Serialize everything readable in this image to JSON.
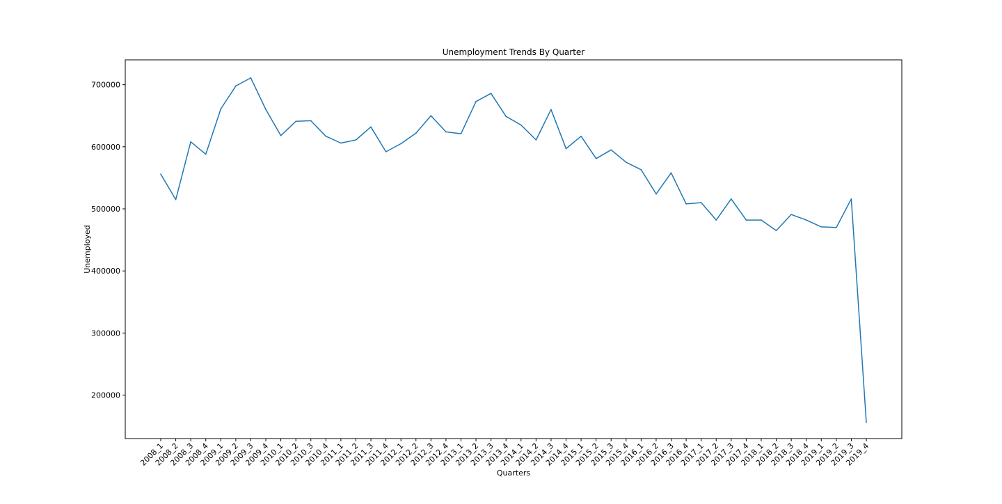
{
  "chart_data": {
    "type": "line",
    "title": "Unemployment Trends By Quarter",
    "xlabel": "Quarters",
    "ylabel": "Unemployed",
    "ylim": [
      130000,
      740000
    ],
    "yticks": [
      200000,
      300000,
      400000,
      500000,
      600000,
      700000
    ],
    "grid": false,
    "line_color": "#1f77b4",
    "categories": [
      "2008_1",
      "2008_2",
      "2008_3",
      "2008_4",
      "2009_1",
      "2009_2",
      "2009_3",
      "2009_4",
      "2010_1",
      "2010_2",
      "2010_3",
      "2010_4",
      "2011_1",
      "2011_2",
      "2011_3",
      "2011_4",
      "2012_1",
      "2012_2",
      "2012_3",
      "2012_4",
      "2013_1",
      "2013_2",
      "2013_3",
      "2013_4",
      "2014_1",
      "2014_2",
      "2014_3",
      "2014_4",
      "2015_1",
      "2015_2",
      "2015_3",
      "2015_4",
      "2016_1",
      "2016_2",
      "2016_3",
      "2016_4",
      "2017_1",
      "2017_2",
      "2017_3",
      "2017_4",
      "2018_1",
      "2018_2",
      "2018_3",
      "2018_4",
      "2019_1",
      "2019_2",
      "2019_3",
      "2019_4"
    ],
    "values": [
      556000,
      515000,
      608000,
      588000,
      661000,
      698000,
      711000,
      660000,
      618000,
      641000,
      642000,
      617000,
      606000,
      611000,
      632000,
      592000,
      605000,
      622000,
      650000,
      624000,
      621000,
      673000,
      686000,
      649000,
      635000,
      611000,
      660000,
      597000,
      617000,
      581000,
      595000,
      575000,
      563000,
      524000,
      558000,
      508000,
      510000,
      482000,
      516000,
      482000,
      482000,
      465000,
      491000,
      482000,
      471000,
      470000,
      516000,
      156000
    ]
  }
}
